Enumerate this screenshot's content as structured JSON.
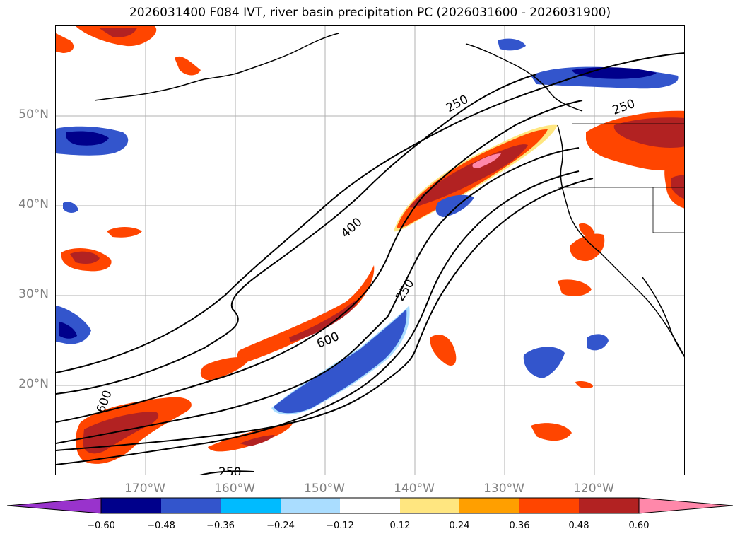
{
  "title": "2026031400 F084 IVT, river basin precipitation PC (2026031600 - 2026031900)",
  "axes": {
    "lat_labels": [
      "50°N",
      "40°N",
      "30°N",
      "20°N"
    ],
    "lon_labels": [
      "170°W",
      "160°W",
      "150°W",
      "140°W",
      "130°W",
      "120°W"
    ]
  },
  "contours": {
    "ivt_labels": [
      "250",
      "400",
      "250",
      "600",
      "600",
      "250",
      "250"
    ]
  },
  "colorbar": {
    "ticks": [
      "−0.60",
      "−0.48",
      "−0.36",
      "−0.24",
      "−0.12",
      "0.12",
      "0.24",
      "0.36",
      "0.48",
      "0.60"
    ],
    "colors": [
      "#9933cc",
      "#00008b",
      "#3355cc",
      "#00bbff",
      "#aaddff",
      "#ffffff",
      "#ffe680",
      "#ff9f00",
      "#ff4500",
      "#b22222",
      "#ff88aa"
    ]
  },
  "palette": {
    "neg_light": "#aaddff",
    "neg_cyan": "#00bbff",
    "neg_blue": "#3355cc",
    "neg_dark": "#00008b",
    "pos_yellow": "#ffe680",
    "pos_orange": "#ff9f00",
    "pos_red": "#ff4500",
    "pos_dark": "#b22222",
    "pos_pink": "#ff88aa"
  }
}
